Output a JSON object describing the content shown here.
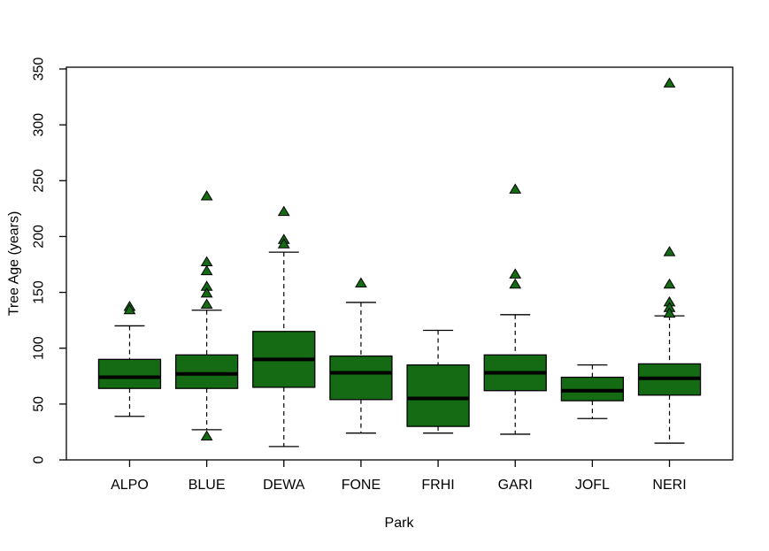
{
  "window": {
    "background_color": "#ffffff"
  },
  "chart_data": {
    "type": "boxplot",
    "title": "",
    "xlabel": "Park",
    "ylabel": "Tree Age (years)",
    "ylim": [
      0,
      350
    ],
    "yticks": [
      0,
      50,
      100,
      150,
      200,
      250,
      300,
      350
    ],
    "categories": [
      "ALPO",
      "BLUE",
      "DEWA",
      "FONE",
      "FRHI",
      "GARI",
      "JOFL",
      "NERI"
    ],
    "grid": false,
    "legend": "none",
    "box_fill_color": "#146b14",
    "box_border_color": "#000000",
    "median_color": "#000000",
    "whisker_style": "dashed",
    "outlier_marker": "filled-triangle",
    "outlier_color": "#146b14",
    "boxes": [
      {
        "park": "ALPO",
        "whisker_low": 39,
        "q1": 64,
        "median": 74,
        "q3": 90,
        "whisker_high": 120,
        "outliers": [
          137,
          134
        ]
      },
      {
        "park": "BLUE",
        "whisker_low": 27,
        "q1": 64,
        "median": 77,
        "q3": 94,
        "whisker_high": 134,
        "outliers": [
          236,
          177,
          169,
          155,
          149,
          139,
          21
        ]
      },
      {
        "park": "DEWA",
        "whisker_low": 12,
        "q1": 65,
        "median": 90,
        "q3": 115,
        "whisker_high": 186,
        "outliers": [
          222,
          197,
          193
        ]
      },
      {
        "park": "FONE",
        "whisker_low": 24,
        "q1": 54,
        "median": 78,
        "q3": 93,
        "whisker_high": 141,
        "outliers": [
          158
        ]
      },
      {
        "park": "FRHI",
        "whisker_low": 24,
        "q1": 30,
        "median": 55,
        "q3": 85,
        "whisker_high": 116,
        "outliers": []
      },
      {
        "park": "GARI",
        "whisker_low": 23,
        "q1": 62,
        "median": 78,
        "q3": 94,
        "whisker_high": 130,
        "outliers": [
          242,
          166,
          157
        ]
      },
      {
        "park": "JOFL",
        "whisker_low": 37,
        "q1": 53,
        "median": 62,
        "q3": 74,
        "whisker_high": 85,
        "outliers": []
      },
      {
        "park": "NERI",
        "whisker_low": 15,
        "q1": 58,
        "median": 73,
        "q3": 86,
        "whisker_high": 129,
        "outliers": [
          337,
          186,
          157,
          141,
          136,
          131
        ]
      }
    ]
  }
}
